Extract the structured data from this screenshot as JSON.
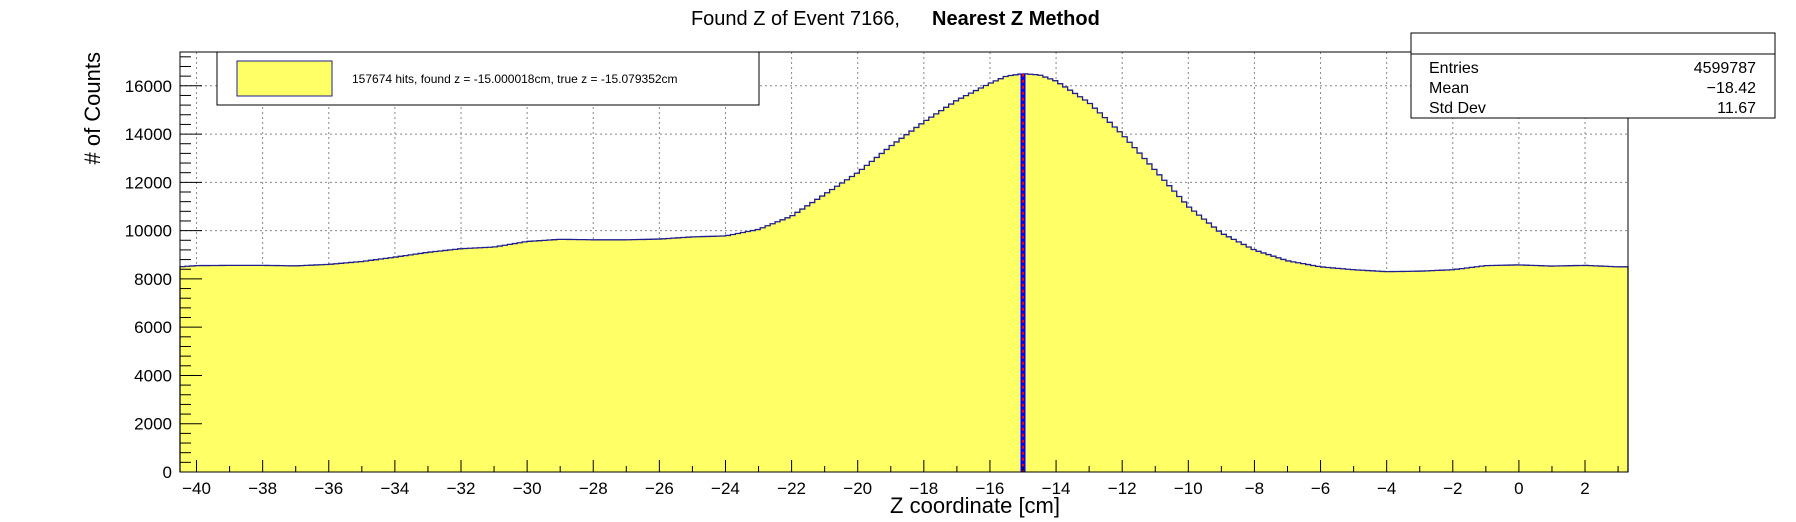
{
  "chart_data": {
    "type": "area",
    "title": "Found Z of Event 7166,",
    "title_bold": "Nearest Z Method",
    "xlabel": "Z coordinate [cm]",
    "ylabel": "# of Counts",
    "xlim": [
      -40.5,
      3.3
    ],
    "ylim": [
      0,
      17400
    ],
    "x_ticks": [
      -40,
      -38,
      -36,
      -34,
      -32,
      -30,
      -28,
      -26,
      -24,
      -22,
      -20,
      -18,
      -16,
      -14,
      -12,
      -10,
      -8,
      -6,
      -4,
      -2,
      0,
      2
    ],
    "x_tick_labels": [
      "−40",
      "−38",
      "−36",
      "−34",
      "−32",
      "−30",
      "−28",
      "−26",
      "−24",
      "−22",
      "−20",
      "−18",
      "−16",
      "−14",
      "−12",
      "−10",
      "−8",
      "−6",
      "−4",
      "−2",
      "0",
      "2"
    ],
    "y_ticks": [
      0,
      2000,
      4000,
      6000,
      8000,
      10000,
      12000,
      14000,
      16000
    ],
    "y_tick_labels": [
      "0",
      "2000",
      "4000",
      "6000",
      "8000",
      "10000",
      "12000",
      "14000",
      "16000"
    ],
    "grid": true,
    "fill_color": "#ffff66",
    "line_color": "#1f1f8f",
    "series": [
      {
        "x": [
          -40.5,
          -40,
          -39,
          -38,
          -37,
          -36,
          -35,
          -34,
          -33,
          -32,
          -31,
          -30,
          -29,
          -28,
          -27,
          -26,
          -25,
          -24,
          -23,
          -22,
          -21,
          -20,
          -19,
          -18,
          -17,
          -16,
          -15.5,
          -15,
          -14.5,
          -14,
          -13,
          -12,
          -11,
          -10,
          -9,
          -8,
          -7,
          -6,
          -5,
          -4,
          -3,
          -2,
          -1,
          0,
          1,
          2,
          3,
          3.3
        ],
        "y": [
          8500,
          8550,
          8560,
          8560,
          8540,
          8600,
          8720,
          8900,
          9100,
          9250,
          9320,
          9550,
          9640,
          9620,
          9620,
          9650,
          9740,
          9780,
          10050,
          10600,
          11500,
          12400,
          13500,
          14500,
          15400,
          16100,
          16400,
          16500,
          16450,
          16200,
          15300,
          14000,
          12500,
          11000,
          9900,
          9200,
          8750,
          8500,
          8380,
          8300,
          8320,
          8380,
          8550,
          8580,
          8530,
          8560,
          8500,
          8500
        ]
      }
    ],
    "markers": [
      {
        "name": "found z",
        "x": -15.000018,
        "color": "#0000ff"
      },
      {
        "name": "true z",
        "x": -15.079352,
        "color": "#ff0000"
      }
    ],
    "legend": {
      "text": "157674 hits, found z = -15.000018cm, true z = -15.079352cm",
      "position": "top-left"
    },
    "stats": {
      "position": "top-right",
      "rows": [
        {
          "label": "Entries",
          "value": "4599787"
        },
        {
          "label": "Mean",
          "value": "−18.42"
        },
        {
          "label": "Std Dev",
          "value": "11.67"
        }
      ]
    }
  }
}
